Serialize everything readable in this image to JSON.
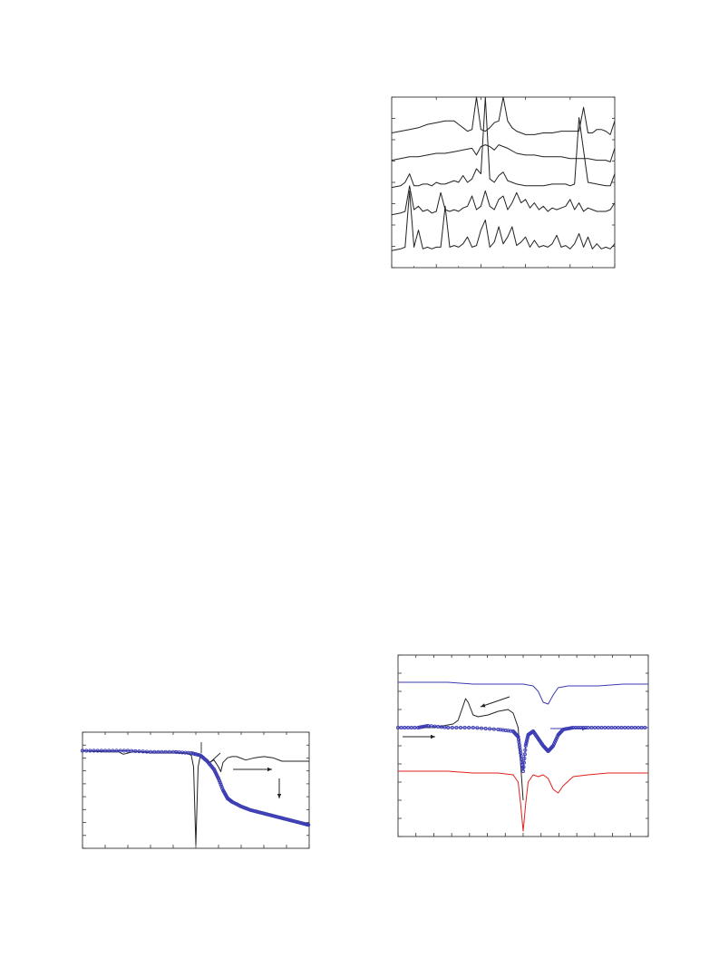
{
  "chart_data": [
    {
      "type": "line",
      "title": "",
      "xlabel": "",
      "ylabel": "",
      "grid": false,
      "legend": "none",
      "xlim": [
        0,
        100
      ],
      "ylim": [
        0,
        100
      ],
      "series": [
        {
          "color": "#222222",
          "x": [
            0,
            4,
            8,
            12,
            16,
            20,
            24,
            28,
            30,
            32,
            34,
            36,
            38,
            40,
            42,
            44,
            46,
            48,
            50,
            52,
            54,
            56,
            58,
            60,
            64,
            68,
            72,
            76,
            80,
            84,
            86,
            88,
            90,
            92,
            94,
            96,
            98,
            100
          ],
          "y": [
            79,
            80,
            81,
            82,
            84,
            85,
            86,
            86,
            84,
            82,
            80,
            81,
            100,
            81,
            80,
            82,
            85,
            86,
            100,
            86,
            82,
            80,
            79,
            78,
            78,
            79,
            79,
            80,
            80,
            80,
            94,
            79,
            79,
            81,
            81,
            80,
            78,
            86
          ]
        },
        {
          "color": "#222222",
          "x": [
            0,
            4,
            8,
            12,
            16,
            20,
            24,
            28,
            32,
            36,
            38,
            40,
            42,
            44,
            46,
            48,
            50,
            52,
            56,
            60,
            64,
            68,
            72,
            76,
            80,
            84,
            88,
            92,
            96,
            98,
            100
          ],
          "y": [
            63,
            64,
            65,
            65,
            66,
            67,
            67,
            68,
            69,
            70,
            66,
            71,
            72,
            71,
            69,
            72,
            71,
            70,
            67,
            66,
            66,
            65,
            65,
            65,
            64,
            64,
            64,
            63,
            63,
            62,
            70
          ]
        },
        {
          "color": "#222222",
          "x": [
            0,
            4,
            6,
            8,
            10,
            12,
            14,
            16,
            18,
            20,
            22,
            24,
            26,
            28,
            30,
            32,
            34,
            36,
            38,
            40,
            42,
            44,
            46,
            48,
            50,
            52,
            54,
            56,
            60,
            64,
            68,
            72,
            76,
            78,
            80,
            82,
            84,
            88,
            92,
            96,
            98,
            100
          ],
          "y": [
            47,
            48,
            50,
            55,
            48,
            48,
            49,
            49,
            48,
            50,
            49,
            49,
            50,
            51,
            50,
            54,
            50,
            52,
            58,
            55,
            100,
            52,
            50,
            54,
            56,
            51,
            50,
            49,
            48,
            48,
            48,
            49,
            49,
            49,
            48,
            49,
            88,
            50,
            49,
            48,
            48,
            55
          ]
        },
        {
          "color": "#222222",
          "x": [
            0,
            4,
            6,
            8,
            10,
            12,
            14,
            16,
            18,
            20,
            22,
            24,
            26,
            28,
            30,
            32,
            34,
            36,
            38,
            40,
            42,
            44,
            46,
            48,
            50,
            52,
            54,
            56,
            58,
            60,
            62,
            64,
            66,
            68,
            70,
            72,
            74,
            76,
            78,
            80,
            82,
            84,
            86,
            88,
            90,
            92,
            96,
            98,
            100
          ],
          "y": [
            31,
            32,
            33,
            48,
            34,
            36,
            33,
            34,
            32,
            33,
            44,
            34,
            33,
            34,
            33,
            35,
            36,
            42,
            34,
            36,
            45,
            36,
            34,
            40,
            42,
            34,
            38,
            44,
            38,
            40,
            35,
            38,
            34,
            36,
            33,
            35,
            34,
            35,
            36,
            40,
            34,
            38,
            33,
            35,
            34,
            33,
            33,
            34,
            38
          ]
        },
        {
          "color": "#222222",
          "x": [
            0,
            4,
            6,
            8,
            10,
            12,
            14,
            16,
            18,
            20,
            22,
            24,
            26,
            28,
            30,
            32,
            34,
            36,
            38,
            40,
            42,
            44,
            46,
            48,
            50,
            52,
            54,
            56,
            58,
            60,
            62,
            64,
            66,
            68,
            70,
            72,
            74,
            76,
            78,
            80,
            82,
            84,
            86,
            88,
            90,
            92,
            94,
            96,
            98,
            100
          ],
          "y": [
            10,
            11,
            12,
            45,
            12,
            22,
            11,
            12,
            11,
            12,
            12,
            36,
            12,
            13,
            12,
            14,
            18,
            12,
            13,
            22,
            28,
            12,
            15,
            24,
            14,
            18,
            24,
            13,
            15,
            18,
            12,
            16,
            12,
            13,
            12,
            14,
            19,
            12,
            13,
            11,
            14,
            20,
            12,
            18,
            11,
            14,
            11,
            12,
            11,
            14
          ]
        }
      ]
    },
    {
      "type": "line",
      "title": "",
      "xlabel": "",
      "ylabel": "",
      "grid": false,
      "legend": "none",
      "xlim": [
        0,
        100
      ],
      "ylim": [
        0,
        100
      ],
      "annotations": [
        "arrow-right",
        "arrow-down"
      ],
      "series": [
        {
          "color": "#222222",
          "x": [
            0,
            10,
            16,
            18,
            20,
            22,
            26,
            30,
            36,
            42,
            46,
            48,
            49,
            50,
            51,
            52,
            54,
            56,
            58,
            60,
            61,
            62,
            64,
            66,
            68,
            72,
            76,
            80,
            84,
            88,
            92,
            96,
            100
          ],
          "y": [
            84,
            83,
            83,
            81,
            82,
            83,
            83,
            82,
            82,
            82,
            82,
            80,
            70,
            3,
            70,
            80,
            78,
            74,
            76,
            70,
            66,
            74,
            78,
            79,
            79,
            76,
            78,
            79,
            78,
            75,
            75,
            75,
            75
          ],
          "y_extra_note": ""
        },
        {
          "color": "#3b3bb3",
          "marker": "circle",
          "x": [
            0,
            10,
            20,
            30,
            40,
            48,
            52,
            55,
            58,
            60,
            62,
            64,
            66,
            70,
            74,
            78,
            82,
            86,
            90,
            94,
            98,
            100
          ],
          "y": [
            84,
            84,
            84,
            83,
            83,
            82,
            80,
            75,
            68,
            60,
            50,
            43,
            40,
            36,
            33,
            31,
            29,
            27,
            25,
            23,
            21,
            20
          ]
        }
      ]
    },
    {
      "type": "line",
      "title": "",
      "xlabel": "",
      "ylabel": "",
      "grid": false,
      "legend": "none",
      "xlim": [
        0,
        100
      ],
      "ylim": [
        0,
        100
      ],
      "annotations": [
        "arrow-left",
        "arrow-right",
        "arrow-right"
      ],
      "series": [
        {
          "color": "#3b3bb3",
          "x": [
            0,
            10,
            20,
            30,
            40,
            50,
            54,
            56,
            58,
            60,
            62,
            64,
            68,
            72,
            80,
            90,
            100
          ],
          "y": [
            85,
            85,
            85,
            84,
            84,
            84,
            83,
            80,
            74,
            73,
            78,
            82,
            83,
            83,
            83,
            84,
            84
          ]
        },
        {
          "color": "#222222",
          "x": [
            10,
            14,
            18,
            22,
            24,
            26,
            27,
            28,
            30,
            32,
            36,
            40,
            44,
            46,
            48,
            49,
            50
          ],
          "y": [
            60,
            60,
            61,
            62,
            64,
            72,
            76,
            74,
            67,
            66,
            67,
            69,
            70,
            68,
            60,
            40,
            20
          ]
        },
        {
          "color": "#3b3bb3",
          "marker": "circle",
          "x": [
            0,
            8,
            12,
            20,
            30,
            40,
            46,
            48,
            49,
            50,
            51,
            52,
            54,
            56,
            58,
            60,
            62,
            64,
            66,
            70,
            76,
            84,
            92,
            100
          ],
          "y": [
            60,
            60,
            61,
            60,
            60,
            59,
            58,
            55,
            46,
            36,
            50,
            56,
            58,
            54,
            50,
            47,
            50,
            56,
            59,
            60,
            60,
            60,
            60,
            60
          ]
        },
        {
          "color": "#e0201c",
          "x": [
            0,
            10,
            20,
            30,
            40,
            46,
            48,
            49,
            50,
            51,
            52,
            54,
            56,
            58,
            60,
            62,
            64,
            66,
            70,
            76,
            84,
            92,
            100
          ],
          "y": [
            36,
            36,
            36,
            35,
            35,
            34,
            30,
            18,
            3,
            18,
            30,
            34,
            33,
            34,
            32,
            26,
            24,
            28,
            33,
            34,
            35,
            35,
            35
          ]
        }
      ]
    }
  ]
}
